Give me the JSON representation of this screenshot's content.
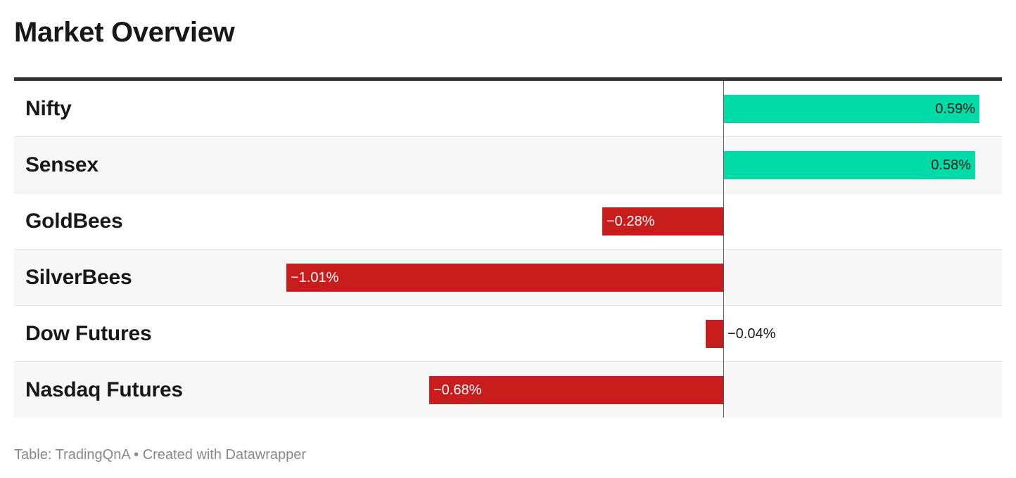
{
  "title": "Market Overview",
  "footer": {
    "source_prefix": "Table: ",
    "source": "TradingQnA",
    "separator": " • ",
    "credit": "Created with Datawrapper"
  },
  "colors": {
    "positive": "#00dba7",
    "negative": "#c71e1d",
    "positive_text": "#1a1a1a",
    "negative_text": "#ffffff"
  },
  "chart_data": {
    "type": "bar",
    "orientation": "horizontal",
    "title": "Market Overview",
    "categories": [
      "Nifty",
      "Sensex",
      "GoldBees",
      "SilverBees",
      "Dow Futures",
      "Nasdaq Futures"
    ],
    "values": [
      0.59,
      0.58,
      -0.28,
      -1.01,
      -0.04,
      -0.68
    ],
    "value_labels": [
      "0.59%",
      "0.58%",
      "−0.28%",
      "−1.01%",
      "−0.04%",
      "−0.68%"
    ],
    "unit": "%",
    "xlim": [
      -1.62,
      0.64
    ],
    "grid": false,
    "legend": "none"
  }
}
